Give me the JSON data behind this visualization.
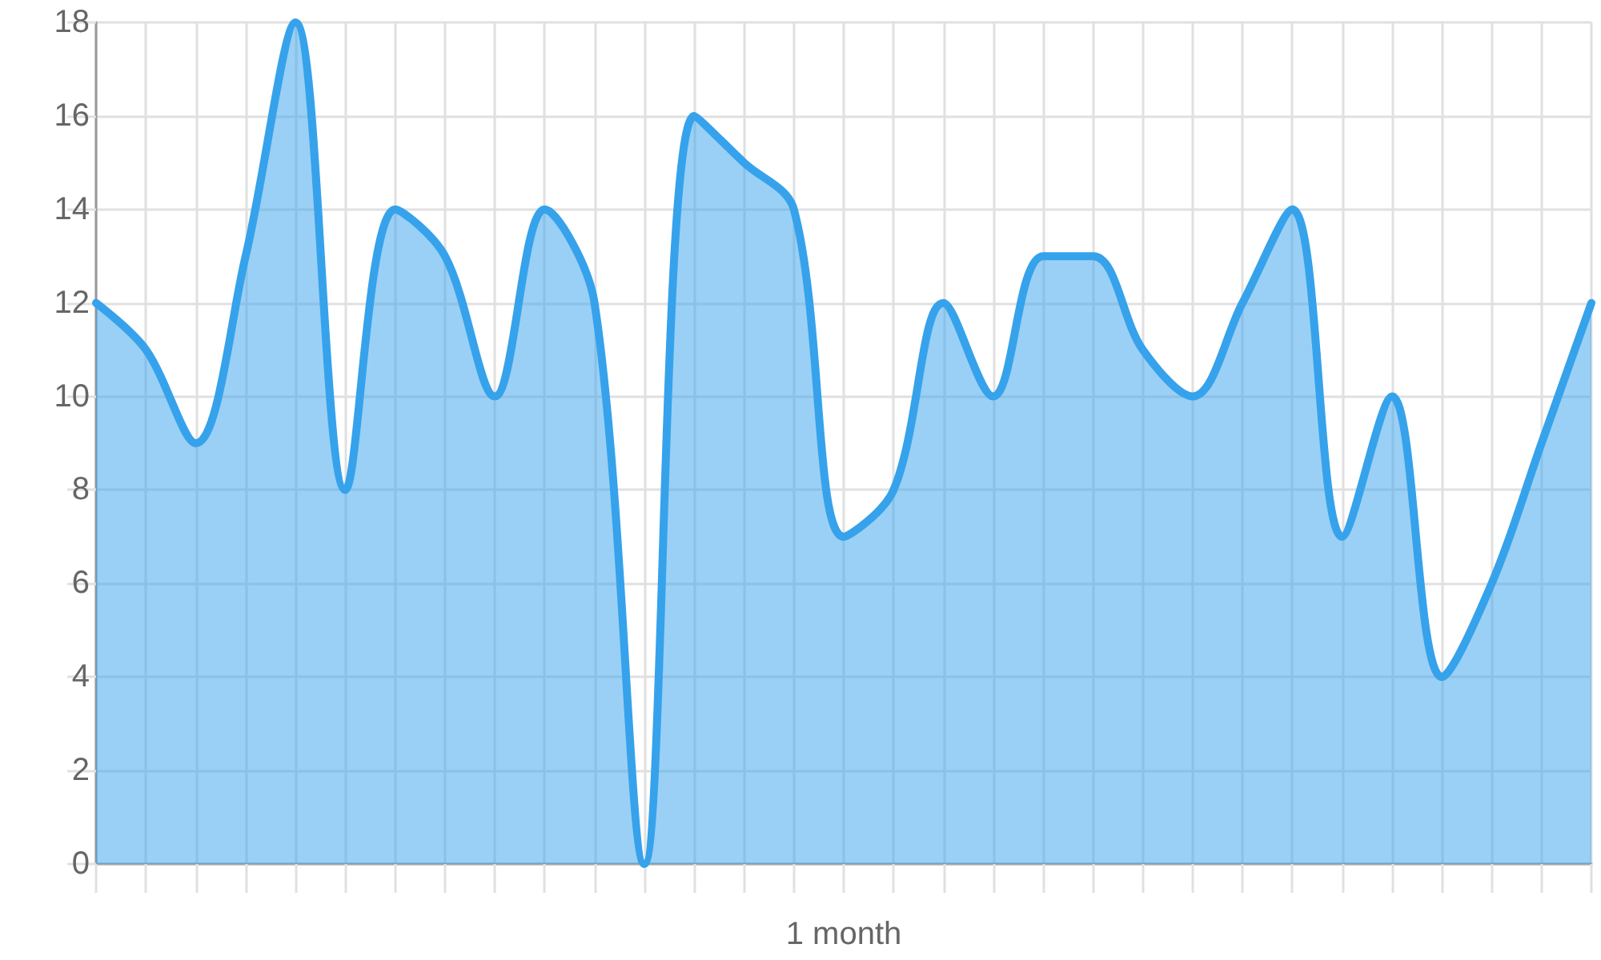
{
  "chart_data": {
    "type": "area",
    "xlabel": "1 month",
    "categories": [
      null,
      null,
      null,
      null,
      null,
      null,
      null,
      null,
      null,
      null,
      null,
      null,
      null,
      null,
      null,
      null,
      null,
      null,
      null,
      null,
      null,
      null,
      null,
      null,
      null,
      null,
      null,
      null,
      null,
      null,
      null
    ],
    "values": [
      12,
      11,
      9,
      13,
      18,
      8,
      14,
      13,
      10,
      14,
      12,
      0,
      16,
      15,
      14,
      7,
      8,
      12,
      10,
      13,
      13,
      11,
      10,
      12,
      14,
      7,
      10,
      4,
      6,
      9,
      12
    ],
    "color": "#36a2eb",
    "ylim": [
      0,
      18
    ],
    "yticks": [
      0,
      2,
      4,
      6,
      8,
      10,
      12,
      14,
      16,
      18
    ],
    "grid": true,
    "tick_labels": "y"
  }
}
